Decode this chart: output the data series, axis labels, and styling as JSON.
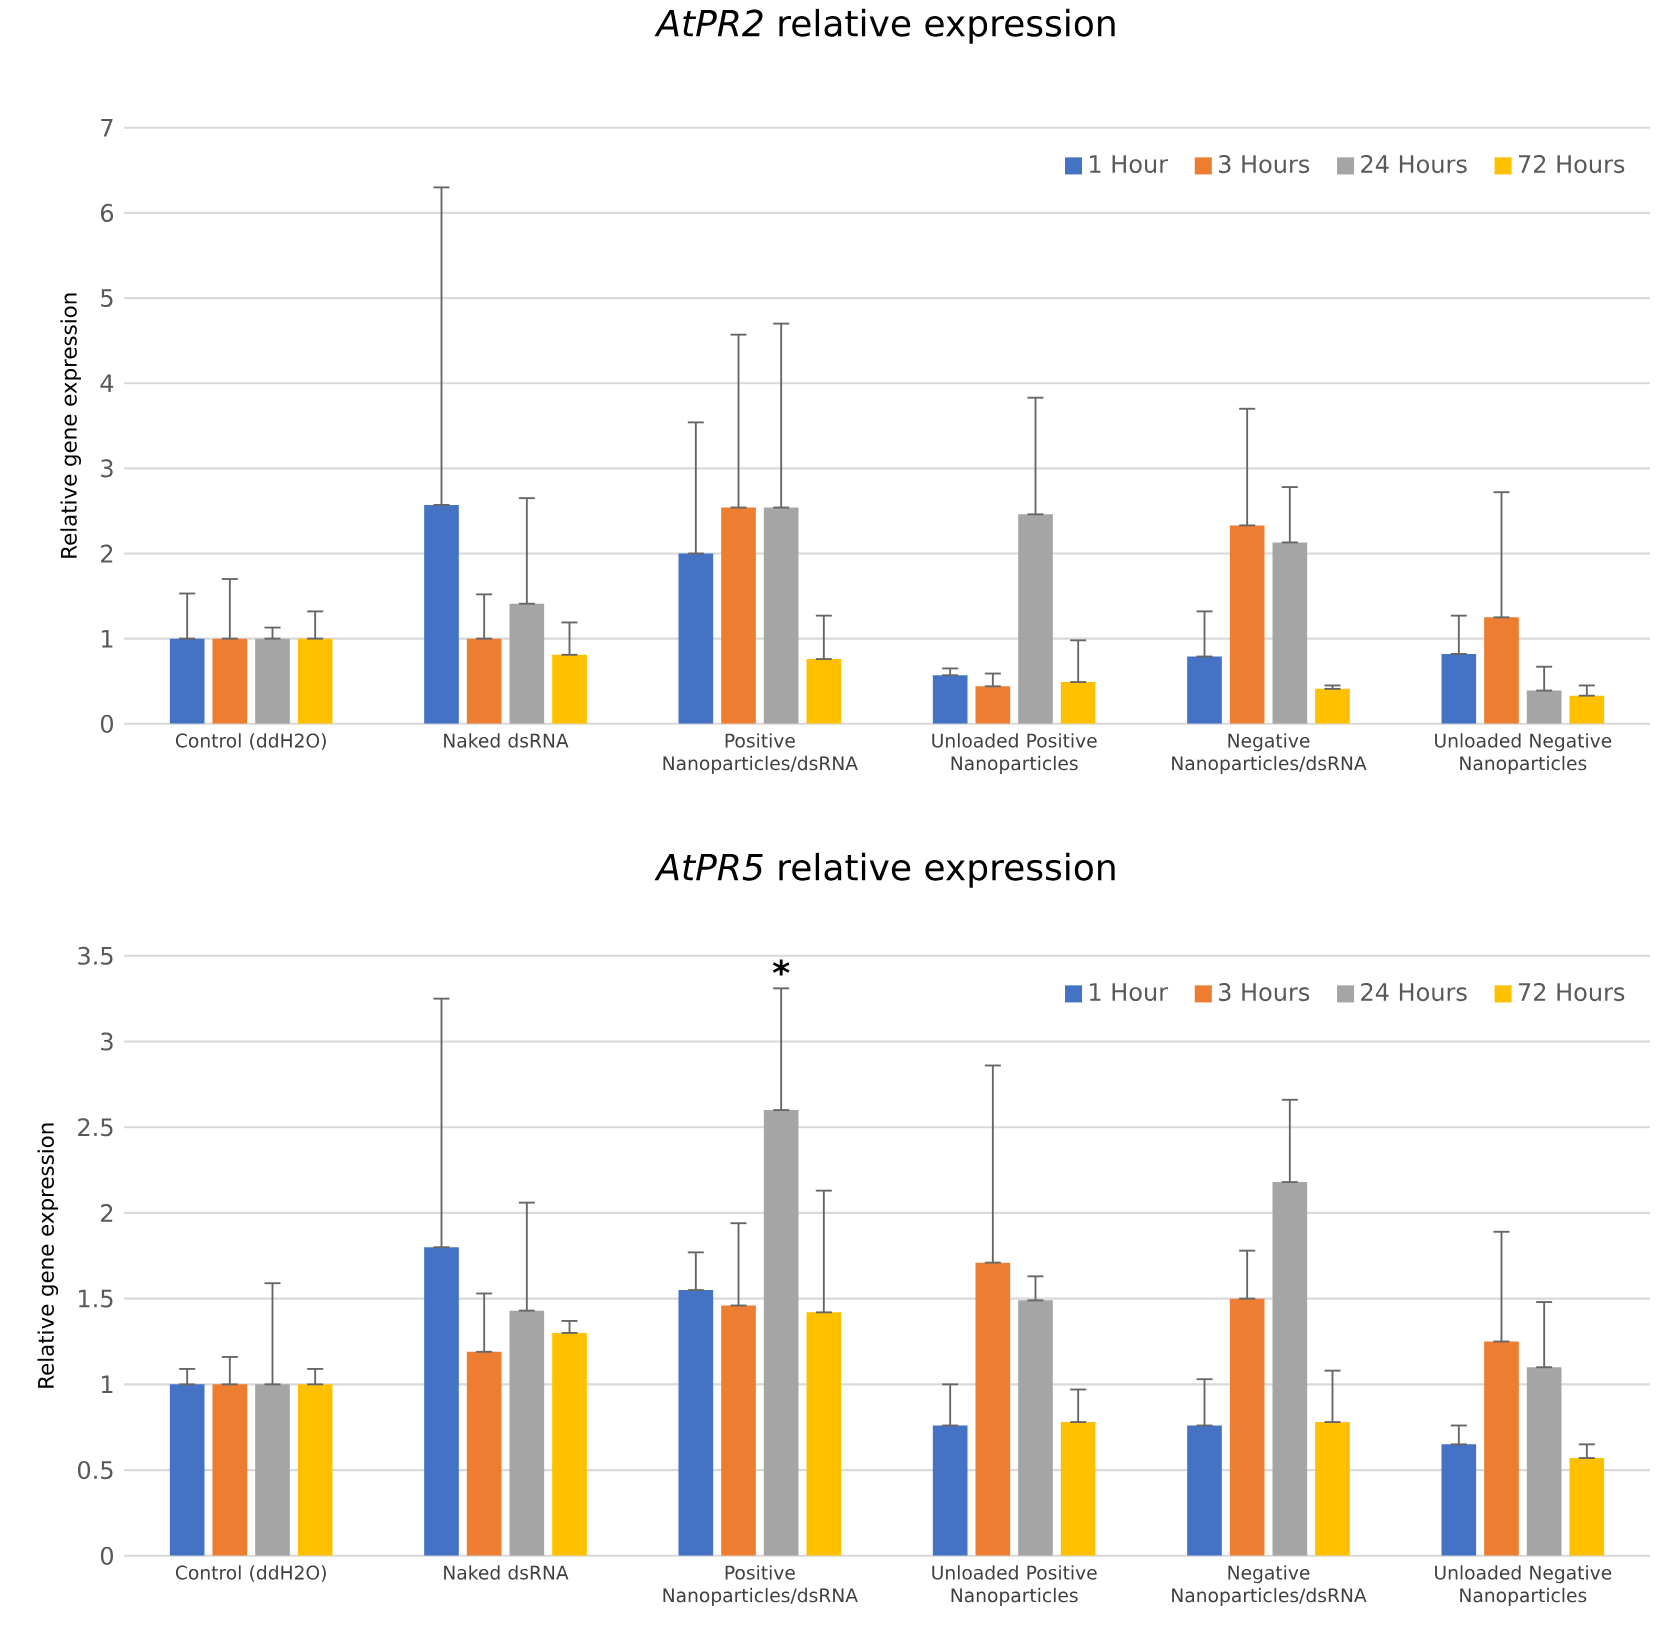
{
  "chart_data": [
    {
      "type": "bar",
      "title": "*AtPR2* relative expression",
      "ylabel": "Relative gene expression",
      "categories": [
        "Control (ddH2O)",
        "Naked dsRNA",
        "Positive Nanoparticles/dsRNA",
        "Unloaded Positive Nanoparticles",
        "Negative Nanoparticles/dsRNA",
        "Unloaded Negative Nanoparticles"
      ],
      "series": [
        {
          "name": "1 Hour",
          "color": "#4472c4",
          "values": [
            1,
            2.57,
            2.0,
            0.57,
            0.79,
            0.82
          ],
          "errors": [
            [
              1,
              1.53
            ],
            [
              2.57,
              6.3
            ],
            [
              2.0,
              3.54
            ],
            [
              0.57,
              0.65
            ],
            [
              0.79,
              1.32
            ],
            [
              0.82,
              1.27
            ]
          ]
        },
        {
          "name": "3 Hours",
          "color": "#ed7d31",
          "values": [
            1,
            1.0,
            2.54,
            0.44,
            2.33,
            1.25
          ],
          "errors": [
            [
              1,
              1.7
            ],
            [
              1.0,
              1.52
            ],
            [
              2.54,
              4.57
            ],
            [
              0.44,
              0.59
            ],
            [
              2.33,
              3.7
            ],
            [
              1.25,
              2.72
            ]
          ]
        },
        {
          "name": "24 Hours",
          "color": "#a5a5a5",
          "values": [
            1,
            1.41,
            2.54,
            2.46,
            2.13,
            0.39
          ],
          "errors": [
            [
              1,
              1.13
            ],
            [
              1.41,
              2.65
            ],
            [
              2.54,
              4.7
            ],
            [
              2.46,
              3.83
            ],
            [
              2.13,
              2.78
            ],
            [
              0.39,
              0.67
            ]
          ]
        },
        {
          "name": "72 Hours",
          "color": "#ffc000",
          "values": [
            1,
            0.81,
            0.76,
            0.49,
            0.41,
            0.33
          ],
          "errors": [
            [
              1,
              1.32
            ],
            [
              0.81,
              1.19
            ],
            [
              0.76,
              1.27
            ],
            [
              0.49,
              0.98
            ],
            [
              0.41,
              0.45
            ],
            [
              0.33,
              0.45
            ]
          ]
        }
      ],
      "ylim": [
        0,
        7
      ],
      "yticks": [
        0,
        1,
        2,
        3,
        4,
        5,
        6,
        7
      ],
      "grid": "y",
      "legend": "top right"
    },
    {
      "type": "bar",
      "title": "*AtPR5* relative expression",
      "ylabel": "Relative gene expression",
      "categories": [
        "Control (ddH2O)",
        "Naked dsRNA",
        "Positive Nanoparticles/dsRNA",
        "Unloaded Positive Nanoparticles",
        "Negative Nanoparticles/dsRNA",
        "Unloaded Negative Nanoparticles"
      ],
      "series": [
        {
          "name": "1 Hour",
          "color": "#4472c4",
          "values": [
            1,
            1.8,
            1.55,
            0.76,
            0.76,
            0.65
          ],
          "errors": [
            [
              1,
              1.09
            ],
            [
              1.8,
              3.25
            ],
            [
              1.55,
              1.77
            ],
            [
              0.76,
              1.0
            ],
            [
              0.76,
              1.03
            ],
            [
              0.65,
              0.76
            ]
          ]
        },
        {
          "name": "3 Hours",
          "color": "#ed7d31",
          "values": [
            1,
            1.19,
            1.46,
            1.71,
            1.5,
            1.25
          ],
          "errors": [
            [
              1,
              1.16
            ],
            [
              1.19,
              1.53
            ],
            [
              1.46,
              1.94
            ],
            [
              1.71,
              2.86
            ],
            [
              1.5,
              1.78
            ],
            [
              1.25,
              1.89
            ]
          ]
        },
        {
          "name": "24 Hours",
          "color": "#a5a5a5",
          "values": [
            1,
            1.43,
            2.6,
            1.49,
            2.18,
            1.1
          ],
          "errors": [
            [
              1,
              1.59
            ],
            [
              1.43,
              2.06
            ],
            [
              2.6,
              3.31
            ],
            [
              1.49,
              1.63
            ],
            [
              2.18,
              2.66
            ],
            [
              1.1,
              1.48
            ]
          ]
        },
        {
          "name": "72 Hours",
          "color": "#ffc000",
          "values": [
            1,
            1.3,
            1.42,
            0.78,
            0.78,
            0.57
          ],
          "errors": [
            [
              1,
              1.09
            ],
            [
              1.3,
              1.37
            ],
            [
              1.42,
              2.13
            ],
            [
              0.78,
              0.97
            ],
            [
              0.78,
              1.08
            ],
            [
              0.57,
              0.65
            ]
          ]
        }
      ],
      "ylim": [
        0,
        3.5
      ],
      "yticks": [
        0,
        0.5,
        1,
        1.5,
        2,
        2.5,
        3,
        3.5
      ],
      "grid": "y",
      "legend": "top right",
      "annotations": [
        "*"
      ]
    }
  ]
}
